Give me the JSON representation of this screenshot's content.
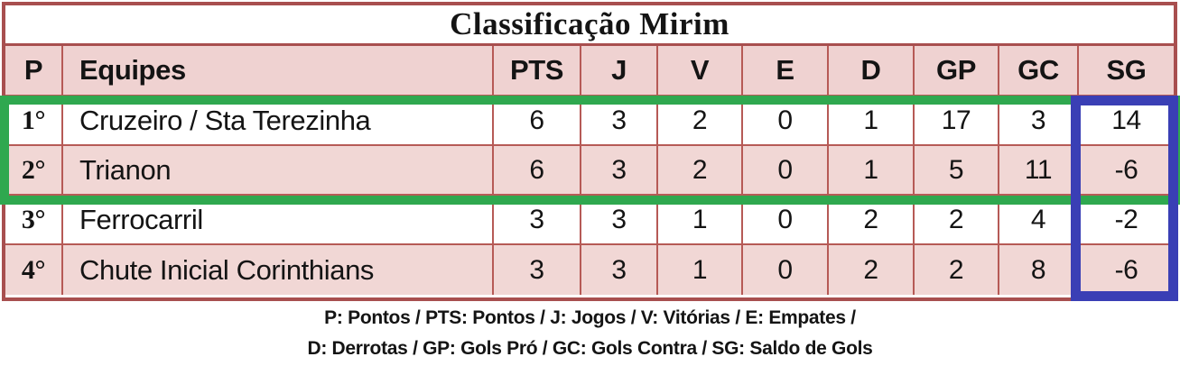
{
  "title": "Classificação Mirim",
  "table": {
    "headers": [
      "P",
      "Equipes",
      "PTS",
      "J",
      "V",
      "E",
      "D",
      "GP",
      "GC",
      "SG"
    ],
    "rows": [
      {
        "pos": "1°",
        "team": "Cruzeiro / Sta Terezinha",
        "pts": "6",
        "j": "3",
        "v": "2",
        "e": "0",
        "d": "1",
        "gp": "17",
        "gc": "3",
        "sg": "14"
      },
      {
        "pos": "2°",
        "team": "Trianon",
        "pts": "6",
        "j": "3",
        "v": "2",
        "e": "0",
        "d": "1",
        "gp": "5",
        "gc": "11",
        "sg": "-6"
      },
      {
        "pos": "3°",
        "team": "Ferrocarril",
        "pts": "3",
        "j": "3",
        "v": "1",
        "e": "0",
        "d": "2",
        "gp": "2",
        "gc": "4",
        "sg": "-2"
      },
      {
        "pos": "4°",
        "team": "Chute Inicial Corinthians",
        "pts": "3",
        "j": "3",
        "v": "1",
        "e": "0",
        "d": "2",
        "gp": "2",
        "gc": "8",
        "sg": "-6"
      }
    ]
  },
  "legend": {
    "line1": "P: Pontos / PTS: Pontos / J: Jogos / V: Vitórias / E: Empates /",
    "line2": "D: Derrotas / GP: Gols Pró / GC: Gols Contra / SG: Saldo de Gols"
  },
  "highlights": {
    "green_box": "rows 1-2 highlighted",
    "blue_box": "SG column highlighted"
  },
  "colors": {
    "outer_border": "#a84f4f",
    "grid_line": "#b65a56",
    "header_fill": "#efd2d1",
    "row_fill": "#f1d7d5",
    "highlight_green": "#2fa84f",
    "highlight_blue": "#3a3fb5",
    "text": "#141414"
  },
  "chart_data": {
    "type": "table",
    "title": "Classificação Mirim",
    "columns": [
      "P",
      "Equipes",
      "PTS",
      "J",
      "V",
      "E",
      "D",
      "GP",
      "GC",
      "SG"
    ],
    "rows": [
      [
        "1°",
        "Cruzeiro / Sta Terezinha",
        6,
        3,
        2,
        0,
        1,
        17,
        3,
        14
      ],
      [
        "2°",
        "Trianon",
        6,
        3,
        2,
        0,
        1,
        5,
        11,
        -6
      ],
      [
        "3°",
        "Ferrocarril",
        3,
        3,
        1,
        0,
        2,
        2,
        4,
        -2
      ],
      [
        "4°",
        "Chute Inicial Corinthians",
        3,
        3,
        1,
        0,
        2,
        2,
        8,
        -6
      ]
    ],
    "annotations": [
      "green rectangle around rows 1-2 (full table width)",
      "blue rectangle around SG column data cells"
    ]
  }
}
